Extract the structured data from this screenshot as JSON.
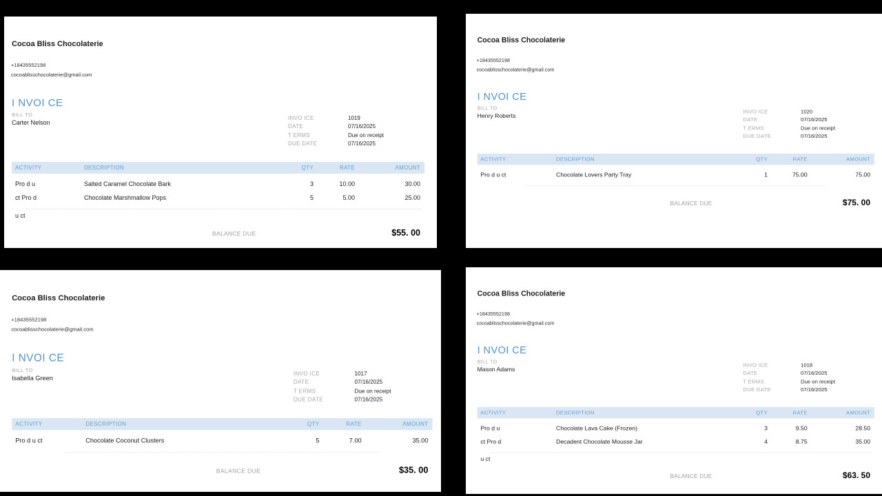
{
  "theme": {
    "background": "#000000",
    "panel": "#ffffff",
    "accent_blue": "#4f94d4",
    "table_header_bg": "#d8e7f3",
    "table_header_text": "#639ed3",
    "muted_gray": "#a8a8a8",
    "dotted_line": "#dcdcdc"
  },
  "invoices": [
    {
      "id": "top-left",
      "company": "Cocoa Bliss Chocolaterie",
      "phone": "+18435552198",
      "email": "cocoablisschocolaterie@gmail.com",
      "title": "I NVOI CE",
      "bill_to_label": "BILL TO",
      "bill_to_name": "Carter Nelson",
      "meta": [
        {
          "label": "INVO ICE",
          "value": "1019"
        },
        {
          "label": "DATE",
          "value": "07/16/2025"
        },
        {
          "label": "T ERMS",
          "value": "Due on receipt"
        },
        {
          "label": "DUE DATE",
          "value": "07/16/2025"
        }
      ],
      "columns": {
        "activity": "ACTIVITY",
        "description": "DESCRIPTION",
        "qty": "QTY",
        "rate": "RATE",
        "amount": "AMOUNT"
      },
      "items": [
        {
          "activity": "Pro d u",
          "description": "Salted Caramel Chocolate Bark",
          "qty": "3",
          "rate": "10.00",
          "amount": "30.00"
        },
        {
          "activity": "ct Pro d",
          "description": "Chocolate Marshmallow Pops",
          "qty": "5",
          "rate": "5.00",
          "amount": "25.00"
        }
      ],
      "tail_activity": "u ct",
      "balance_label": "BALANCE DUE",
      "balance_amount": "$55. 00"
    },
    {
      "id": "top-right",
      "company": "Cocoa Bliss Chocolaterie",
      "phone": "+18435552198",
      "email": "cocoablisschocolaterie@gmail.com",
      "title": "I NVOI CE",
      "bill_to_label": "BILL TO",
      "bill_to_name": "Henry Roberts",
      "meta": [
        {
          "label": "INVO ICE",
          "value": "1020"
        },
        {
          "label": "DATE",
          "value": "07/16/2025"
        },
        {
          "label": "T ERMS",
          "value": "Due on receipt"
        },
        {
          "label": "DUE DATE",
          "value": "07/16/2025"
        }
      ],
      "columns": {
        "activity": "ACTIVITY",
        "description": "DESCRIPTION",
        "qty": "QTY",
        "rate": "RATE",
        "amount": "AMOUNT"
      },
      "items": [
        {
          "activity": "Pro d u ct",
          "description": "Chocolate Lovers Party Tray",
          "qty": "1",
          "rate": "75.00",
          "amount": "75.00"
        }
      ],
      "tail_activity": "",
      "balance_label": "BALANCE DUE",
      "balance_amount": "$75. 00"
    },
    {
      "id": "bottom-left",
      "company": "Cocoa Bliss Chocolaterie",
      "phone": "+18435552198",
      "email": "cocoablisschocolaterie@gmail.com",
      "title": "I NVOI CE",
      "bill_to_label": "BILL TO",
      "bill_to_name": "Isabella Green",
      "meta": [
        {
          "label": "INVO ICE",
          "value": "1017"
        },
        {
          "label": "DATE",
          "value": "07/16/2025"
        },
        {
          "label": "T ERMS",
          "value": "Due on receipt"
        },
        {
          "label": "DUE DATE",
          "value": "07/16/2025"
        }
      ],
      "columns": {
        "activity": "ACTIVITY",
        "description": "DESCRIPTION",
        "qty": "QTY",
        "rate": "RATE",
        "amount": "AMOUNT"
      },
      "items": [
        {
          "activity": "Pro d u ct",
          "description": "Chocolate Coconut Clusters",
          "qty": "5",
          "rate": "7.00",
          "amount": "35.00"
        }
      ],
      "tail_activity": "",
      "balance_label": "BALANCE DUE",
      "balance_amount": "$35. 00"
    },
    {
      "id": "bottom-right",
      "company": "Cocoa Bliss Chocolaterie",
      "phone": "+18435552198",
      "email": "cocoablisschocolaterie@gmail.com",
      "title": "I NVOI CE",
      "bill_to_label": "BILL TO",
      "bill_to_name": "Mason Adams",
      "meta": [
        {
          "label": "INVO ICE",
          "value": "1018"
        },
        {
          "label": "DATE",
          "value": "07/16/2025"
        },
        {
          "label": "T ERMS",
          "value": "Due on receipt"
        },
        {
          "label": "DUE DATE",
          "value": "07/16/2025"
        }
      ],
      "columns": {
        "activity": "ACTIVITY",
        "description": "DESCRIPTION",
        "qty": "QTY",
        "rate": "RATE",
        "amount": "AMOUNT"
      },
      "items": [
        {
          "activity": "Pro d u",
          "description": "Chocolate Lava Cake (Frozen)",
          "qty": "3",
          "rate": "9.50",
          "amount": "28.50"
        },
        {
          "activity": "ct Pro d",
          "description": "Decadent Chocolate Mousse Jar",
          "qty": "4",
          "rate": "8.75",
          "amount": "35.00"
        }
      ],
      "tail_activity": "u ct",
      "balance_label": "BALANCE DUE",
      "balance_amount": "$63. 50"
    }
  ]
}
